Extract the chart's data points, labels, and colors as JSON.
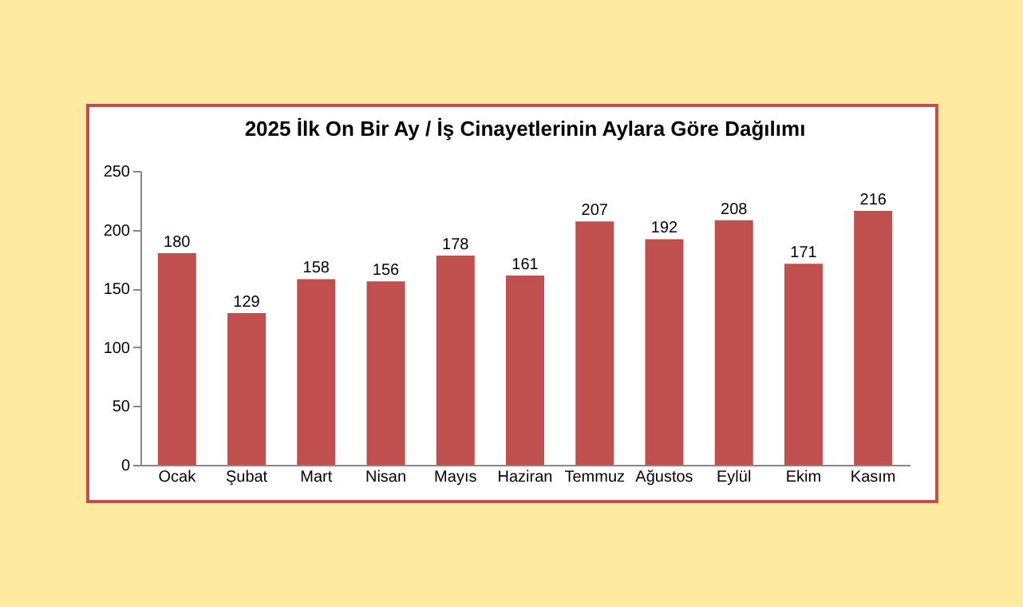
{
  "chart_data": {
    "type": "bar",
    "title": "2025 İlk On Bir Ay / İş Cinayetlerinin Aylara Göre Dağılımı",
    "categories": [
      "Ocak",
      "Şubat",
      "Mart",
      "Nisan",
      "Mayıs",
      "Haziran",
      "Temmuz",
      "Ağustos",
      "Eylül",
      "Ekim",
      "Kasım"
    ],
    "values": [
      180,
      129,
      158,
      156,
      178,
      161,
      207,
      192,
      208,
      171,
      216
    ],
    "color": "#c0504d",
    "ylim": [
      0,
      250
    ],
    "yticks": [
      0,
      50,
      100,
      150,
      200,
      250
    ],
    "grid": false,
    "data_labels": true
  }
}
